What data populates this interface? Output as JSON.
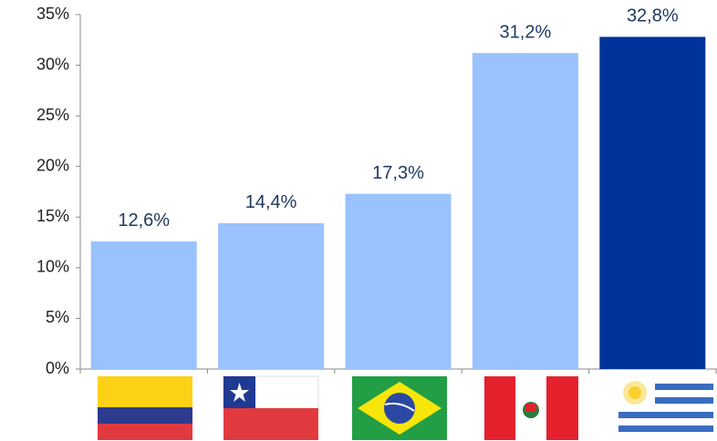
{
  "chart_data": {
    "type": "bar",
    "categories": [
      null,
      null,
      null,
      null,
      null
    ],
    "values": [
      12.6,
      14.4,
      17.3,
      31.2,
      32.8
    ],
    "value_labels": [
      "12,6%",
      "14,4%",
      "17,3%",
      "31,2%",
      "32,8%"
    ],
    "colors": [
      "#99c2ff",
      "#99c2ff",
      "#99c2ff",
      "#99c2ff",
      "#003399"
    ],
    "ylim": [
      0,
      35
    ],
    "yticks": [
      {
        "value": 0,
        "label": "0%"
      },
      {
        "value": 5,
        "label": "5%"
      },
      {
        "value": 10,
        "label": "10%"
      },
      {
        "value": 15,
        "label": "15%"
      },
      {
        "value": 20,
        "label": "20%"
      },
      {
        "value": 25,
        "label": "25%"
      },
      {
        "value": 30,
        "label": "30%"
      },
      {
        "value": 35,
        "label": "35%"
      }
    ],
    "grid": false
  }
}
